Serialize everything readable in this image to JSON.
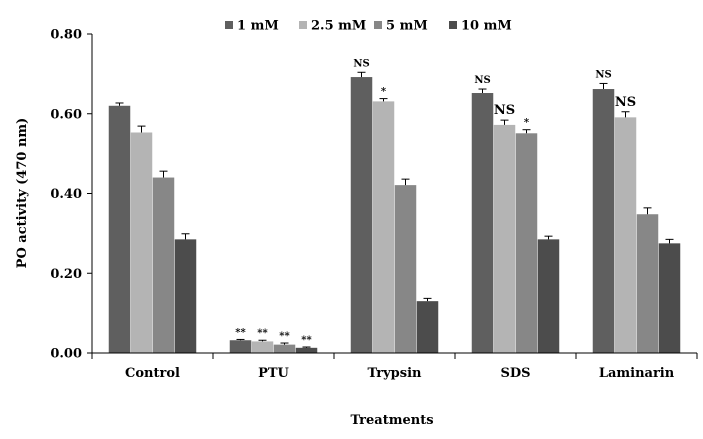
{
  "chart_data": {
    "type": "bar",
    "title": "",
    "xlabel": "Treatments",
    "ylabel": "PO activity (470 nm)",
    "ylim": [
      0,
      0.8
    ],
    "yticks": [
      "0.00",
      "0.20",
      "0.40",
      "0.60",
      "0.80"
    ],
    "ytick_values": [
      0,
      0.2,
      0.4,
      0.6,
      0.8
    ],
    "categories": [
      "Control",
      "PTU",
      "Trypsin",
      "SDS",
      "Laminarin"
    ],
    "legend_position": "top",
    "grid": false,
    "series": [
      {
        "name": "1 mM",
        "color": "#5f5f5f",
        "values": [
          0.62,
          0.032,
          0.692,
          0.652,
          0.662
        ],
        "errors": [
          0.007,
          0.002,
          0.012,
          0.01,
          0.014
        ],
        "annotations": [
          "",
          "**",
          "NS",
          "NS",
          "NS"
        ]
      },
      {
        "name": "2.5 mM",
        "color": "#b4b4b4",
        "values": [
          0.553,
          0.029,
          0.631,
          0.572,
          0.591
        ],
        "errors": [
          0.016,
          0.003,
          0.007,
          0.012,
          0.014
        ],
        "annotations": [
          "",
          "**",
          "*",
          "NS",
          "NS"
        ]
      },
      {
        "name": "5 mM",
        "color": "#878787",
        "values": [
          0.44,
          0.021,
          0.421,
          0.551,
          0.348
        ],
        "errors": [
          0.016,
          0.004,
          0.015,
          0.009,
          0.016
        ],
        "annotations": [
          "",
          "**",
          "",
          "*",
          ""
        ]
      },
      {
        "name": "10 mM",
        "color": "#4c4c4c",
        "values": [
          0.285,
          0.013,
          0.13,
          0.285,
          0.275
        ],
        "errors": [
          0.014,
          0.002,
          0.007,
          0.008,
          0.01
        ],
        "annotations": [
          "",
          "**",
          "",
          "",
          ""
        ]
      }
    ]
  }
}
